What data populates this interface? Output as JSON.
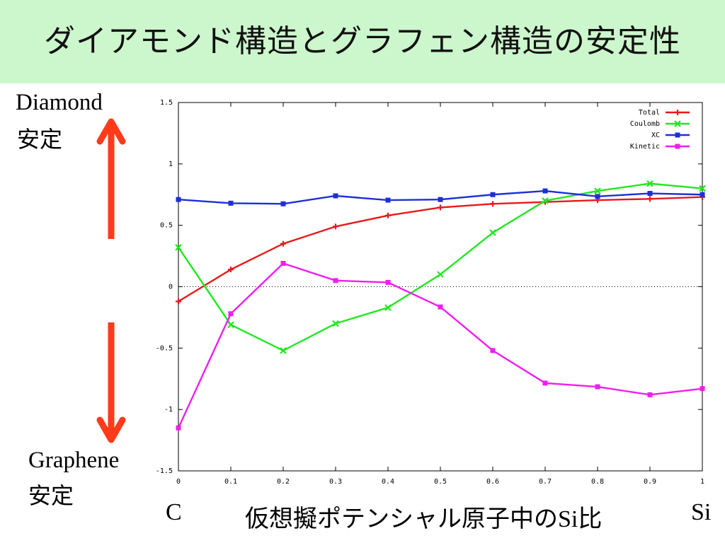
{
  "title": "ダイアモンド構造とグラフェン構造の安定性",
  "labels": {
    "diamond": "Diamond",
    "diamond_stable": "安定",
    "graphene": "Graphene",
    "graphene_stable": "安定",
    "x_left": "C",
    "x_center": "仮想擬ポテンシャル原子中のSi比",
    "x_right": "Si"
  },
  "colors": {
    "title_bg": "#ccf7cc",
    "arrow": "#ff3b1a"
  },
  "chart_data": {
    "type": "line",
    "x": [
      0,
      0.1,
      0.2,
      0.3,
      0.4,
      0.5,
      0.6,
      0.7,
      0.8,
      0.9,
      1
    ],
    "x_ticks": [
      "0",
      "0.1",
      "0.2",
      "0.3",
      "0.4",
      "0.5",
      "0.6",
      "0.7",
      "0.8",
      "0.9",
      "1"
    ],
    "y_ticks": [
      "1.5",
      "1",
      "0.5",
      "0",
      "-0.5",
      "-1",
      "-1.5"
    ],
    "y_tick_values": [
      1.5,
      1,
      0.5,
      0,
      -0.5,
      -1,
      -1.5
    ],
    "xlim": [
      0,
      1
    ],
    "ylim": [
      -1.5,
      1.5
    ],
    "zero_line": true,
    "legend_position": "top-right",
    "series": [
      {
        "name": "Total",
        "color": "#e8191b",
        "marker": "plus",
        "values": [
          -0.12,
          0.14,
          0.35,
          0.49,
          0.58,
          0.645,
          0.675,
          0.69,
          0.705,
          0.715,
          0.73
        ]
      },
      {
        "name": "Coulomb",
        "color": "#1fe81f",
        "marker": "cross",
        "values": [
          0.32,
          -0.31,
          -0.52,
          -0.3,
          -0.17,
          0.1,
          0.44,
          0.7,
          0.78,
          0.84,
          0.8
        ]
      },
      {
        "name": "XC",
        "color": "#1d2fd6",
        "marker": "square",
        "values": [
          0.71,
          0.68,
          0.675,
          0.74,
          0.705,
          0.71,
          0.75,
          0.78,
          0.735,
          0.76,
          0.75
        ]
      },
      {
        "name": "Kinetic",
        "color": "#f01ef0",
        "marker": "square",
        "values": [
          -1.15,
          -0.22,
          0.19,
          0.05,
          0.035,
          -0.165,
          -0.52,
          -0.785,
          -0.815,
          -0.88,
          -0.83
        ]
      }
    ]
  }
}
